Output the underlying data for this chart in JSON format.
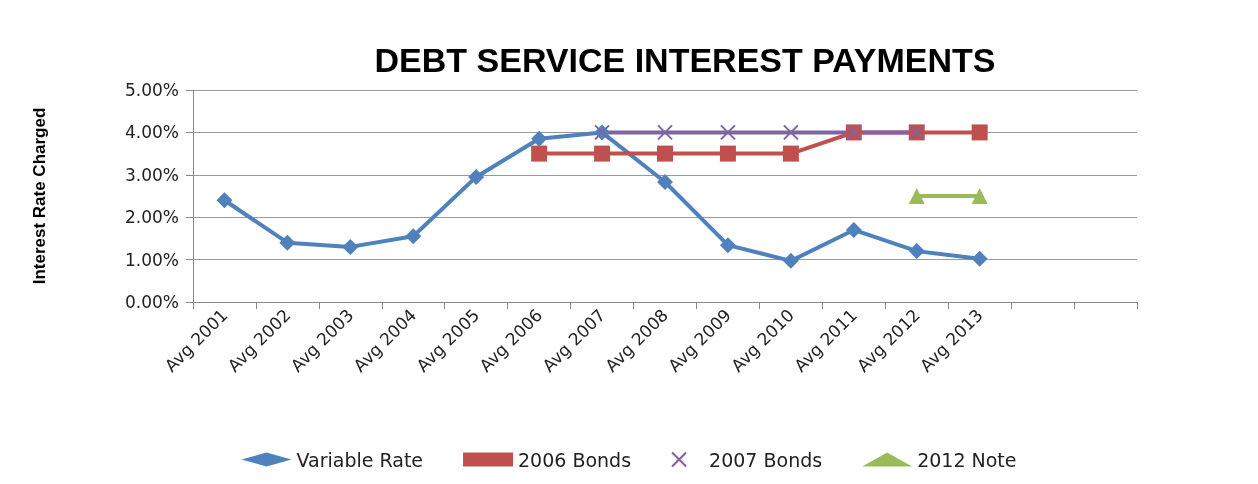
{
  "chart_data": {
    "type": "line",
    "title": "DEBT SERVICE INTEREST PAYMENTS",
    "ylabel": "Interest Rate Charged",
    "categories": [
      "Avg 2001",
      "Avg 2002",
      "Avg 2003",
      "Avg 2004",
      "Avg 2005",
      "Avg 2006",
      "Avg 2007",
      "Avg 2008",
      "Avg 2009",
      "Avg 2010",
      "Avg 2011",
      "Avg 2012",
      "Avg 2013",
      null,
      null
    ],
    "series": [
      {
        "name": "Variable Rate",
        "color": "#4f81bd",
        "marker": "diamond",
        "values": [
          2.4,
          1.4,
          1.3,
          1.55,
          2.95,
          3.85,
          4.0,
          2.83,
          1.34,
          0.97,
          1.7,
          1.2,
          1.02,
          null,
          null
        ]
      },
      {
        "name": "2006 Bonds",
        "color": "#c0504d",
        "marker": "square",
        "values": [
          null,
          null,
          null,
          null,
          null,
          3.5,
          3.5,
          3.5,
          3.5,
          3.5,
          4.0,
          4.0,
          4.0,
          null,
          null
        ]
      },
      {
        "name": "2007 Bonds",
        "color": "#8064a2",
        "marker": "cross",
        "values": [
          null,
          null,
          null,
          null,
          null,
          null,
          4.0,
          4.0,
          4.0,
          4.0,
          4.0,
          4.0,
          null,
          null,
          null
        ]
      },
      {
        "name": "2012 Note",
        "color": "#9bbb59",
        "marker": "triangle",
        "values": [
          null,
          null,
          null,
          null,
          null,
          null,
          null,
          null,
          null,
          null,
          null,
          2.5,
          2.5,
          null,
          null
        ]
      }
    ],
    "ylim": [
      0,
      5
    ],
    "yticks": [
      {
        "value": 0,
        "label": "0.00%"
      },
      {
        "value": 1,
        "label": "1.00%"
      },
      {
        "value": 2,
        "label": "2.00%"
      },
      {
        "value": 3,
        "label": "3.00%"
      },
      {
        "value": 4,
        "label": "4.00%"
      },
      {
        "value": 5,
        "label": "5.00%"
      }
    ],
    "grid": "y",
    "legend": "bottom",
    "line_style": "solid"
  }
}
